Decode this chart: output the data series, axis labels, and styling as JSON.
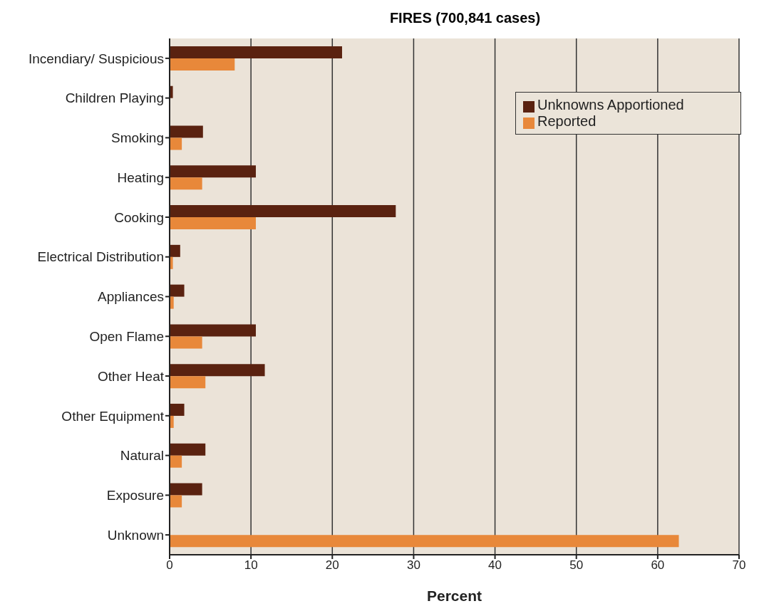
{
  "chart_data": {
    "type": "bar",
    "orientation": "horizontal",
    "title": "FIRES (700,841 cases)",
    "xlabel": "Percent",
    "categories": [
      "Incendiary/ Suspicious",
      "Children Playing",
      "Smoking",
      "Heating",
      "Cooking",
      "Electrical Distribution",
      "Appliances",
      "Open Flame",
      "Other Heat",
      "Other Equipment",
      "Natural",
      "Exposure",
      "Unknown"
    ],
    "series": [
      {
        "name": "Unknowns Apportioned",
        "color": "#5a2210",
        "values": [
          21.2,
          0.4,
          4.1,
          10.6,
          27.8,
          1.3,
          1.8,
          10.6,
          11.7,
          1.8,
          4.4,
          4.0,
          null
        ]
      },
      {
        "name": "Reported",
        "color": "#e8883a",
        "values": [
          8.0,
          null,
          1.5,
          4.0,
          10.6,
          0.4,
          0.5,
          4.0,
          4.4,
          0.5,
          1.5,
          1.5,
          62.6
        ]
      }
    ],
    "xlim": [
      0,
      70
    ],
    "xticks": [
      0,
      10,
      20,
      30,
      40,
      50,
      60,
      70
    ],
    "grid": "x",
    "legend": "top right"
  }
}
